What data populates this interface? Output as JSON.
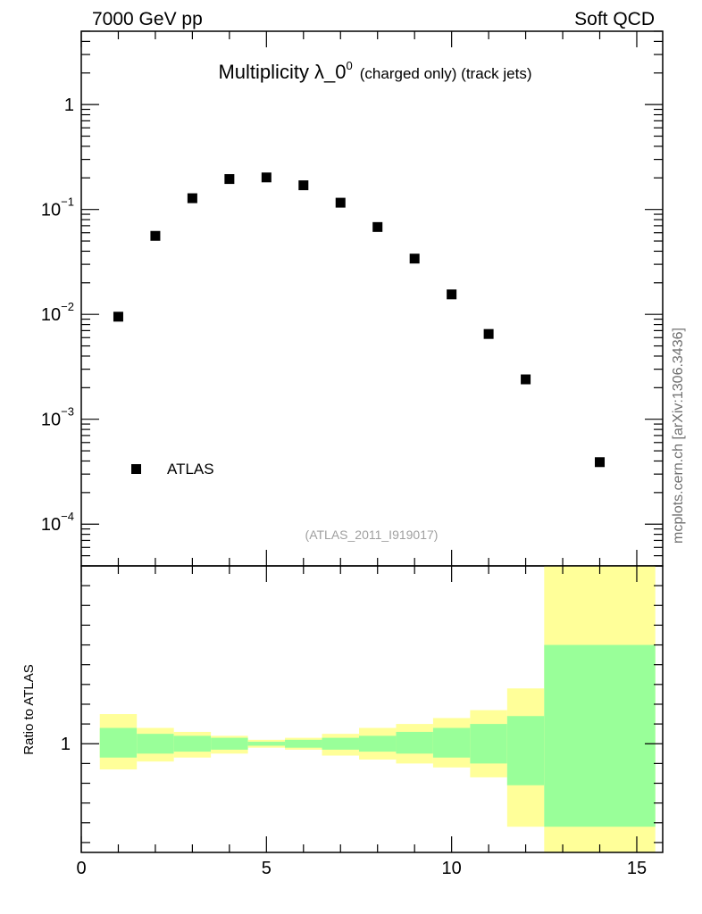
{
  "header": {
    "left": "7000 GeV pp",
    "right": "Soft QCD",
    "side_label": "mcplots.cern.ch [arXiv:1306.3436]"
  },
  "chart_data": [
    {
      "type": "scatter",
      "title_main": "Multiplicity λ_0",
      "title_sup": "0",
      "title_suffix": "(charged only) (track jets)",
      "analysis_label": "(ATLAS_2011_I919017)",
      "yscale": "log",
      "xlim": [
        0,
        15.7
      ],
      "ylim": [
        4e-05,
        5
      ],
      "x_ticks": [
        0,
        5,
        10,
        15
      ],
      "y_ticks": [
        {
          "base": "1",
          "exp": ""
        },
        {
          "base": "10",
          "exp": "−1"
        },
        {
          "base": "10",
          "exp": "−2"
        },
        {
          "base": "10",
          "exp": "−3"
        },
        {
          "base": "10",
          "exp": "−4"
        }
      ],
      "y_tick_values": [
        1,
        0.1,
        0.01,
        0.001,
        0.0001
      ],
      "legend_position": "bottom-left",
      "series": [
        {
          "name": "ATLAS",
          "color": "#000000",
          "x": [
            1,
            2,
            3,
            4,
            5,
            6,
            7,
            8,
            9,
            10,
            11,
            12,
            14
          ],
          "y": [
            0.0095,
            0.056,
            0.128,
            0.195,
            0.202,
            0.17,
            0.116,
            0.068,
            0.034,
            0.0155,
            0.0065,
            0.0024,
            0.00039
          ]
        }
      ]
    },
    {
      "type": "area",
      "ylabel": "Ratio to ATLAS",
      "xlim": [
        0,
        15.7
      ],
      "ylim": [
        0.45,
        1.9
      ],
      "y_tick_label": "1",
      "band_colors": {
        "outer": "#ffff99",
        "inner": "#99ff99"
      },
      "bins": [
        {
          "x0": 0.5,
          "x1": 1.5,
          "outer": [
            0.87,
            1.15
          ],
          "inner": [
            0.93,
            1.08
          ]
        },
        {
          "x0": 1.5,
          "x1": 2.5,
          "outer": [
            0.91,
            1.08
          ],
          "inner": [
            0.95,
            1.05
          ]
        },
        {
          "x0": 2.5,
          "x1": 3.5,
          "outer": [
            0.93,
            1.06
          ],
          "inner": [
            0.96,
            1.04
          ]
        },
        {
          "x0": 3.5,
          "x1": 4.5,
          "outer": [
            0.95,
            1.04
          ],
          "inner": [
            0.97,
            1.03
          ]
        },
        {
          "x0": 4.5,
          "x1": 5.5,
          "outer": [
            0.98,
            1.02
          ],
          "inner": [
            0.99,
            1.01
          ]
        },
        {
          "x0": 5.5,
          "x1": 6.5,
          "outer": [
            0.97,
            1.03
          ],
          "inner": [
            0.98,
            1.02
          ]
        },
        {
          "x0": 6.5,
          "x1": 7.5,
          "outer": [
            0.94,
            1.05
          ],
          "inner": [
            0.97,
            1.03
          ]
        },
        {
          "x0": 7.5,
          "x1": 8.5,
          "outer": [
            0.92,
            1.08
          ],
          "inner": [
            0.96,
            1.04
          ]
        },
        {
          "x0": 8.5,
          "x1": 9.5,
          "outer": [
            0.9,
            1.1
          ],
          "inner": [
            0.95,
            1.06
          ]
        },
        {
          "x0": 9.5,
          "x1": 10.5,
          "outer": [
            0.88,
            1.13
          ],
          "inner": [
            0.93,
            1.08
          ]
        },
        {
          "x0": 10.5,
          "x1": 11.5,
          "outer": [
            0.83,
            1.17
          ],
          "inner": [
            0.9,
            1.1
          ]
        },
        {
          "x0": 11.5,
          "x1": 12.5,
          "outer": [
            0.58,
            1.28
          ],
          "inner": [
            0.79,
            1.14
          ]
        },
        {
          "x0": 12.5,
          "x1": 15.5,
          "outer": [
            0.45,
            1.9
          ],
          "inner": [
            0.58,
            1.5
          ]
        }
      ]
    }
  ]
}
